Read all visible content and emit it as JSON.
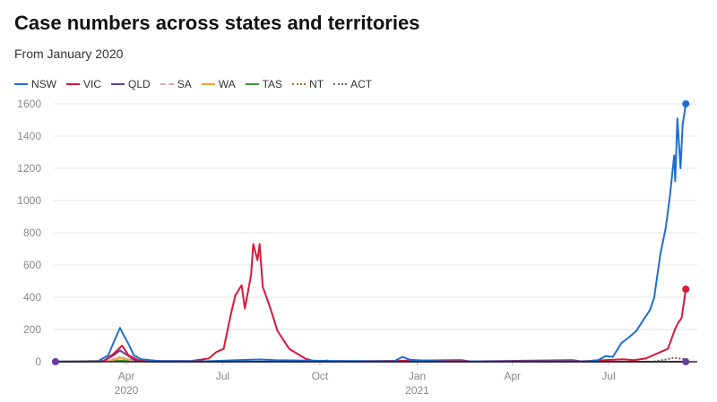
{
  "title": "Case numbers across states and territories",
  "subtitle": "From January 2020",
  "chart_data": {
    "type": "line",
    "title": "Case numbers across states and territories",
    "subtitle": "From January 2020",
    "xlabel": "",
    "ylabel": "",
    "ylim": [
      0,
      1600
    ],
    "yticks": [
      0,
      200,
      400,
      600,
      800,
      1000,
      1200,
      1400,
      1600
    ],
    "xlim": [
      "2020-01-25",
      "2021-09-12"
    ],
    "xticks": [
      {
        "date": "2020-04-01",
        "label": "Apr",
        "year": "2020"
      },
      {
        "date": "2020-07-01",
        "label": "Jul",
        "year": ""
      },
      {
        "date": "2020-10-01",
        "label": "Oct",
        "year": ""
      },
      {
        "date": "2021-01-01",
        "label": "Jan",
        "year": "2021"
      },
      {
        "date": "2021-04-01",
        "label": "Apr",
        "year": ""
      },
      {
        "date": "2021-07-01",
        "label": "Jul",
        "year": ""
      }
    ],
    "grid": true,
    "legend_position": "top-left",
    "series": [
      {
        "name": "NSW",
        "color": "#1f6fd1",
        "style": "solid",
        "points": [
          [
            "2020-01-25",
            0
          ],
          [
            "2020-03-05",
            2
          ],
          [
            "2020-03-15",
            40
          ],
          [
            "2020-03-20",
            120
          ],
          [
            "2020-03-26",
            210
          ],
          [
            "2020-03-29",
            170
          ],
          [
            "2020-04-03",
            110
          ],
          [
            "2020-04-08",
            40
          ],
          [
            "2020-04-15",
            15
          ],
          [
            "2020-05-01",
            5
          ],
          [
            "2020-06-15",
            3
          ],
          [
            "2020-07-15",
            10
          ],
          [
            "2020-08-05",
            14
          ],
          [
            "2020-08-20",
            10
          ],
          [
            "2020-09-10",
            8
          ],
          [
            "2020-10-15",
            5
          ],
          [
            "2020-12-10",
            3
          ],
          [
            "2020-12-18",
            30
          ],
          [
            "2020-12-25",
            12
          ],
          [
            "2021-01-10",
            6
          ],
          [
            "2021-02-01",
            2
          ],
          [
            "2021-05-01",
            3
          ],
          [
            "2021-06-10",
            2
          ],
          [
            "2021-06-21",
            10
          ],
          [
            "2021-06-28",
            35
          ],
          [
            "2021-07-05",
            30
          ],
          [
            "2021-07-13",
            115
          ],
          [
            "2021-07-20",
            150
          ],
          [
            "2021-07-27",
            190
          ],
          [
            "2021-08-03",
            260
          ],
          [
            "2021-08-09",
            320
          ],
          [
            "2021-08-13",
            395
          ],
          [
            "2021-08-19",
            670
          ],
          [
            "2021-08-24",
            830
          ],
          [
            "2021-08-28",
            1030
          ],
          [
            "2021-09-01",
            1280
          ],
          [
            "2021-09-02",
            1120
          ],
          [
            "2021-09-04",
            1510
          ],
          [
            "2021-09-07",
            1200
          ],
          [
            "2021-09-09",
            1470
          ],
          [
            "2021-09-12",
            1600
          ]
        ]
      },
      {
        "name": "VIC",
        "color": "#d7193a",
        "style": "solid",
        "points": [
          [
            "2020-01-25",
            0
          ],
          [
            "2020-03-10",
            2
          ],
          [
            "2020-03-20",
            50
          ],
          [
            "2020-03-28",
            100
          ],
          [
            "2020-04-03",
            40
          ],
          [
            "2020-04-12",
            10
          ],
          [
            "2020-05-01",
            5
          ],
          [
            "2020-06-01",
            4
          ],
          [
            "2020-06-18",
            20
          ],
          [
            "2020-06-25",
            60
          ],
          [
            "2020-07-02",
            80
          ],
          [
            "2020-07-08",
            270
          ],
          [
            "2020-07-13",
            410
          ],
          [
            "2020-07-19",
            475
          ],
          [
            "2020-07-22",
            330
          ],
          [
            "2020-07-28",
            540
          ],
          [
            "2020-07-30",
            730
          ],
          [
            "2020-08-03",
            630
          ],
          [
            "2020-08-05",
            730
          ],
          [
            "2020-08-08",
            465
          ],
          [
            "2020-08-14",
            355
          ],
          [
            "2020-08-22",
            190
          ],
          [
            "2020-09-02",
            80
          ],
          [
            "2020-09-17",
            20
          ],
          [
            "2020-09-25",
            5
          ],
          [
            "2020-10-20",
            2
          ],
          [
            "2021-02-12",
            10
          ],
          [
            "2021-02-20",
            2
          ],
          [
            "2021-05-28",
            10
          ],
          [
            "2021-06-05",
            3
          ],
          [
            "2021-07-15",
            15
          ],
          [
            "2021-07-25",
            10
          ],
          [
            "2021-08-05",
            20
          ],
          [
            "2021-08-19",
            60
          ],
          [
            "2021-08-26",
            80
          ],
          [
            "2021-09-02",
            205
          ],
          [
            "2021-09-05",
            245
          ],
          [
            "2021-09-08",
            270
          ],
          [
            "2021-09-12",
            450
          ]
        ]
      },
      {
        "name": "QLD",
        "color": "#6a3d9a",
        "style": "solid",
        "points": [
          [
            "2020-01-25",
            0
          ],
          [
            "2020-03-10",
            3
          ],
          [
            "2020-03-20",
            40
          ],
          [
            "2020-03-26",
            70
          ],
          [
            "2020-04-02",
            40
          ],
          [
            "2020-04-10",
            5
          ],
          [
            "2020-04-25",
            0
          ],
          [
            "2021-09-12",
            0
          ]
        ]
      },
      {
        "name": "SA",
        "color": "#e8a0a8",
        "style": "dashed",
        "points": [
          [
            "2020-01-25",
            0
          ],
          [
            "2020-03-15",
            5
          ],
          [
            "2020-03-25",
            30
          ],
          [
            "2020-04-05",
            5
          ],
          [
            "2020-04-20",
            0
          ],
          [
            "2021-09-12",
            0
          ]
        ]
      },
      {
        "name": "WA",
        "color": "#f5a623",
        "style": "solid",
        "points": [
          [
            "2020-01-25",
            0
          ],
          [
            "2020-03-15",
            5
          ],
          [
            "2020-03-28",
            25
          ],
          [
            "2020-04-05",
            10
          ],
          [
            "2020-04-20",
            0
          ],
          [
            "2020-10-05",
            0
          ],
          [
            "2020-10-08",
            10
          ],
          [
            "2020-10-11",
            0
          ],
          [
            "2021-09-12",
            0
          ]
        ]
      },
      {
        "name": "TAS",
        "color": "#3a9a3a",
        "style": "solid",
        "points": [
          [
            "2020-01-25",
            0
          ],
          [
            "2020-03-25",
            5
          ],
          [
            "2020-04-08",
            15
          ],
          [
            "2020-04-20",
            3
          ],
          [
            "2020-05-01",
            0
          ],
          [
            "2021-09-12",
            0
          ]
        ]
      },
      {
        "name": "NT",
        "color": "#b5651d",
        "style": "dotted",
        "points": [
          [
            "2020-01-25",
            0
          ],
          [
            "2020-03-25",
            5
          ],
          [
            "2020-04-02",
            0
          ],
          [
            "2021-09-12",
            0
          ]
        ]
      },
      {
        "name": "ACT",
        "color": "#666666",
        "style": "dotted",
        "points": [
          [
            "2020-01-25",
            0
          ],
          [
            "2020-03-25",
            8
          ],
          [
            "2020-04-05",
            0
          ],
          [
            "2021-08-12",
            0
          ],
          [
            "2021-08-25",
            15
          ],
          [
            "2021-09-01",
            25
          ],
          [
            "2021-09-12",
            15
          ]
        ]
      }
    ]
  }
}
